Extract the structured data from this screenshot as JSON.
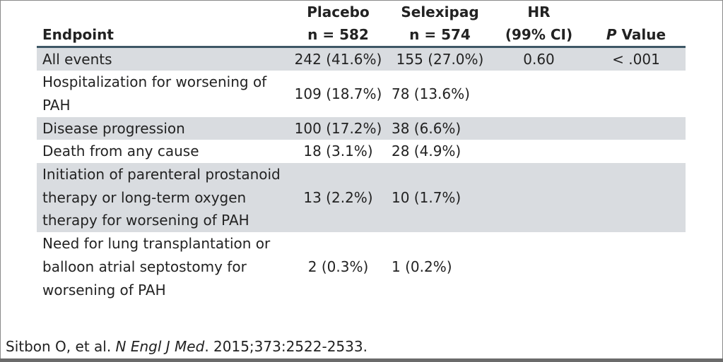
{
  "table": {
    "headers": {
      "endpoint": "Endpoint",
      "placebo_l1": "Placebo",
      "placebo_l2": "n = 582",
      "selexipag_l1": "Selexipag",
      "selexipag_l2": "n = 574",
      "hr_l1": "HR",
      "hr_l2": "(99% CI)",
      "p_italic": "P",
      "p_rest": " Value"
    },
    "rows": [
      {
        "endpoint": "All events",
        "placebo": "242 (41.6%)",
        "selexipag": "155 (27.0%)",
        "hr": "0.60",
        "p": "< .001"
      },
      {
        "endpoint": "Hospitalization for worsening of PAH",
        "placebo": "109 (18.7%)",
        "selexipag": "78 (13.6%)",
        "hr": "",
        "p": ""
      },
      {
        "endpoint": "Disease progression",
        "placebo": "100 (17.2%)",
        "selexipag": "38 (6.6%)",
        "hr": "",
        "p": ""
      },
      {
        "endpoint": "Death from any cause",
        "placebo": "18 (3.1%)",
        "selexipag": "28 (4.9%)",
        "hr": "",
        "p": ""
      },
      {
        "endpoint": "Initiation of parenteral prostanoid therapy or long-term oxygen therapy for worsening of PAH",
        "placebo": "13 (2.2%)",
        "selexipag": "10 (1.7%)",
        "hr": "",
        "p": ""
      },
      {
        "endpoint": "Need for lung transplantation or balloon atrial septostomy for worsening of PAH",
        "placebo": "2 (0.3%)",
        "selexipag": "1 (0.2%)",
        "hr": "",
        "p": ""
      }
    ]
  },
  "citation": {
    "authors": "Sitbon O, et al. ",
    "journal": "N Engl J Med",
    "rest": ". 2015;373:2522-2533."
  },
  "colors": {
    "shade": "#d9dce0",
    "rule": "#3e5766"
  }
}
